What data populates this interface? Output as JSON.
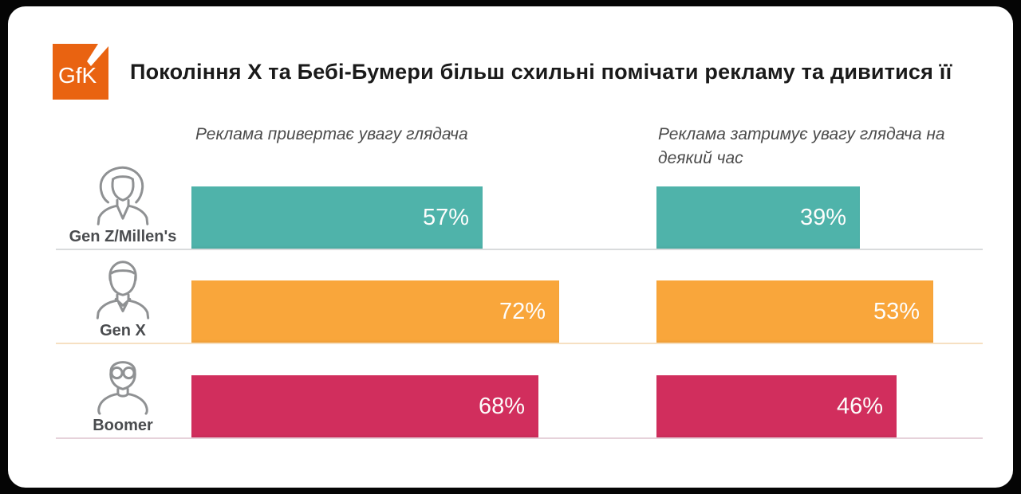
{
  "page": {
    "background": "#050505",
    "card_background": "#ffffff"
  },
  "header": {
    "logo": {
      "text": "GfK",
      "background": "#E96311",
      "text_color": "#ffffff"
    },
    "title": "Покоління X та Бебі-Бумери більш схильні помічати рекламу та дивитися її",
    "title_color": "#1a1a1a"
  },
  "chart_data": {
    "type": "bar",
    "orientation": "horizontal",
    "unit": "%",
    "value_range": [
      0,
      100
    ],
    "grid": false,
    "legend_position": "none",
    "column_captions": [
      "Реклама привертає увагу глядача",
      "Реклама затримує увагу глядача на деякий час"
    ],
    "categories": [
      "Gen Z/Millen's",
      "Gen X",
      "Boomer"
    ],
    "series": [
      {
        "name": "Реклама привертає увагу глядача",
        "values": [
          57,
          72,
          68
        ]
      },
      {
        "name": "Реклама затримує увагу глядача на деякий час",
        "values": [
          39,
          53,
          46
        ]
      }
    ],
    "rows": [
      {
        "label": "Gen Z/Millen's",
        "icon": "young-woman-avatar-icon",
        "color": "#4FB3AA",
        "separator_color": "#d9dbdc",
        "bars": [
          {
            "value": 57,
            "display": "57%"
          },
          {
            "value": 39,
            "display": "39%"
          }
        ]
      },
      {
        "label": "Gen X",
        "icon": "man-avatar-icon",
        "color": "#F9A63B",
        "separator_color": "#f6e0c2",
        "bars": [
          {
            "value": 72,
            "display": "72%"
          },
          {
            "value": 53,
            "display": "53%"
          }
        ]
      },
      {
        "label": "Boomer",
        "icon": "older-man-glasses-avatar-icon",
        "color": "#D12E5D",
        "separator_color": "#e6d2da",
        "bars": [
          {
            "value": 68,
            "display": "68%"
          },
          {
            "value": 46,
            "display": "46%"
          }
        ]
      }
    ]
  }
}
